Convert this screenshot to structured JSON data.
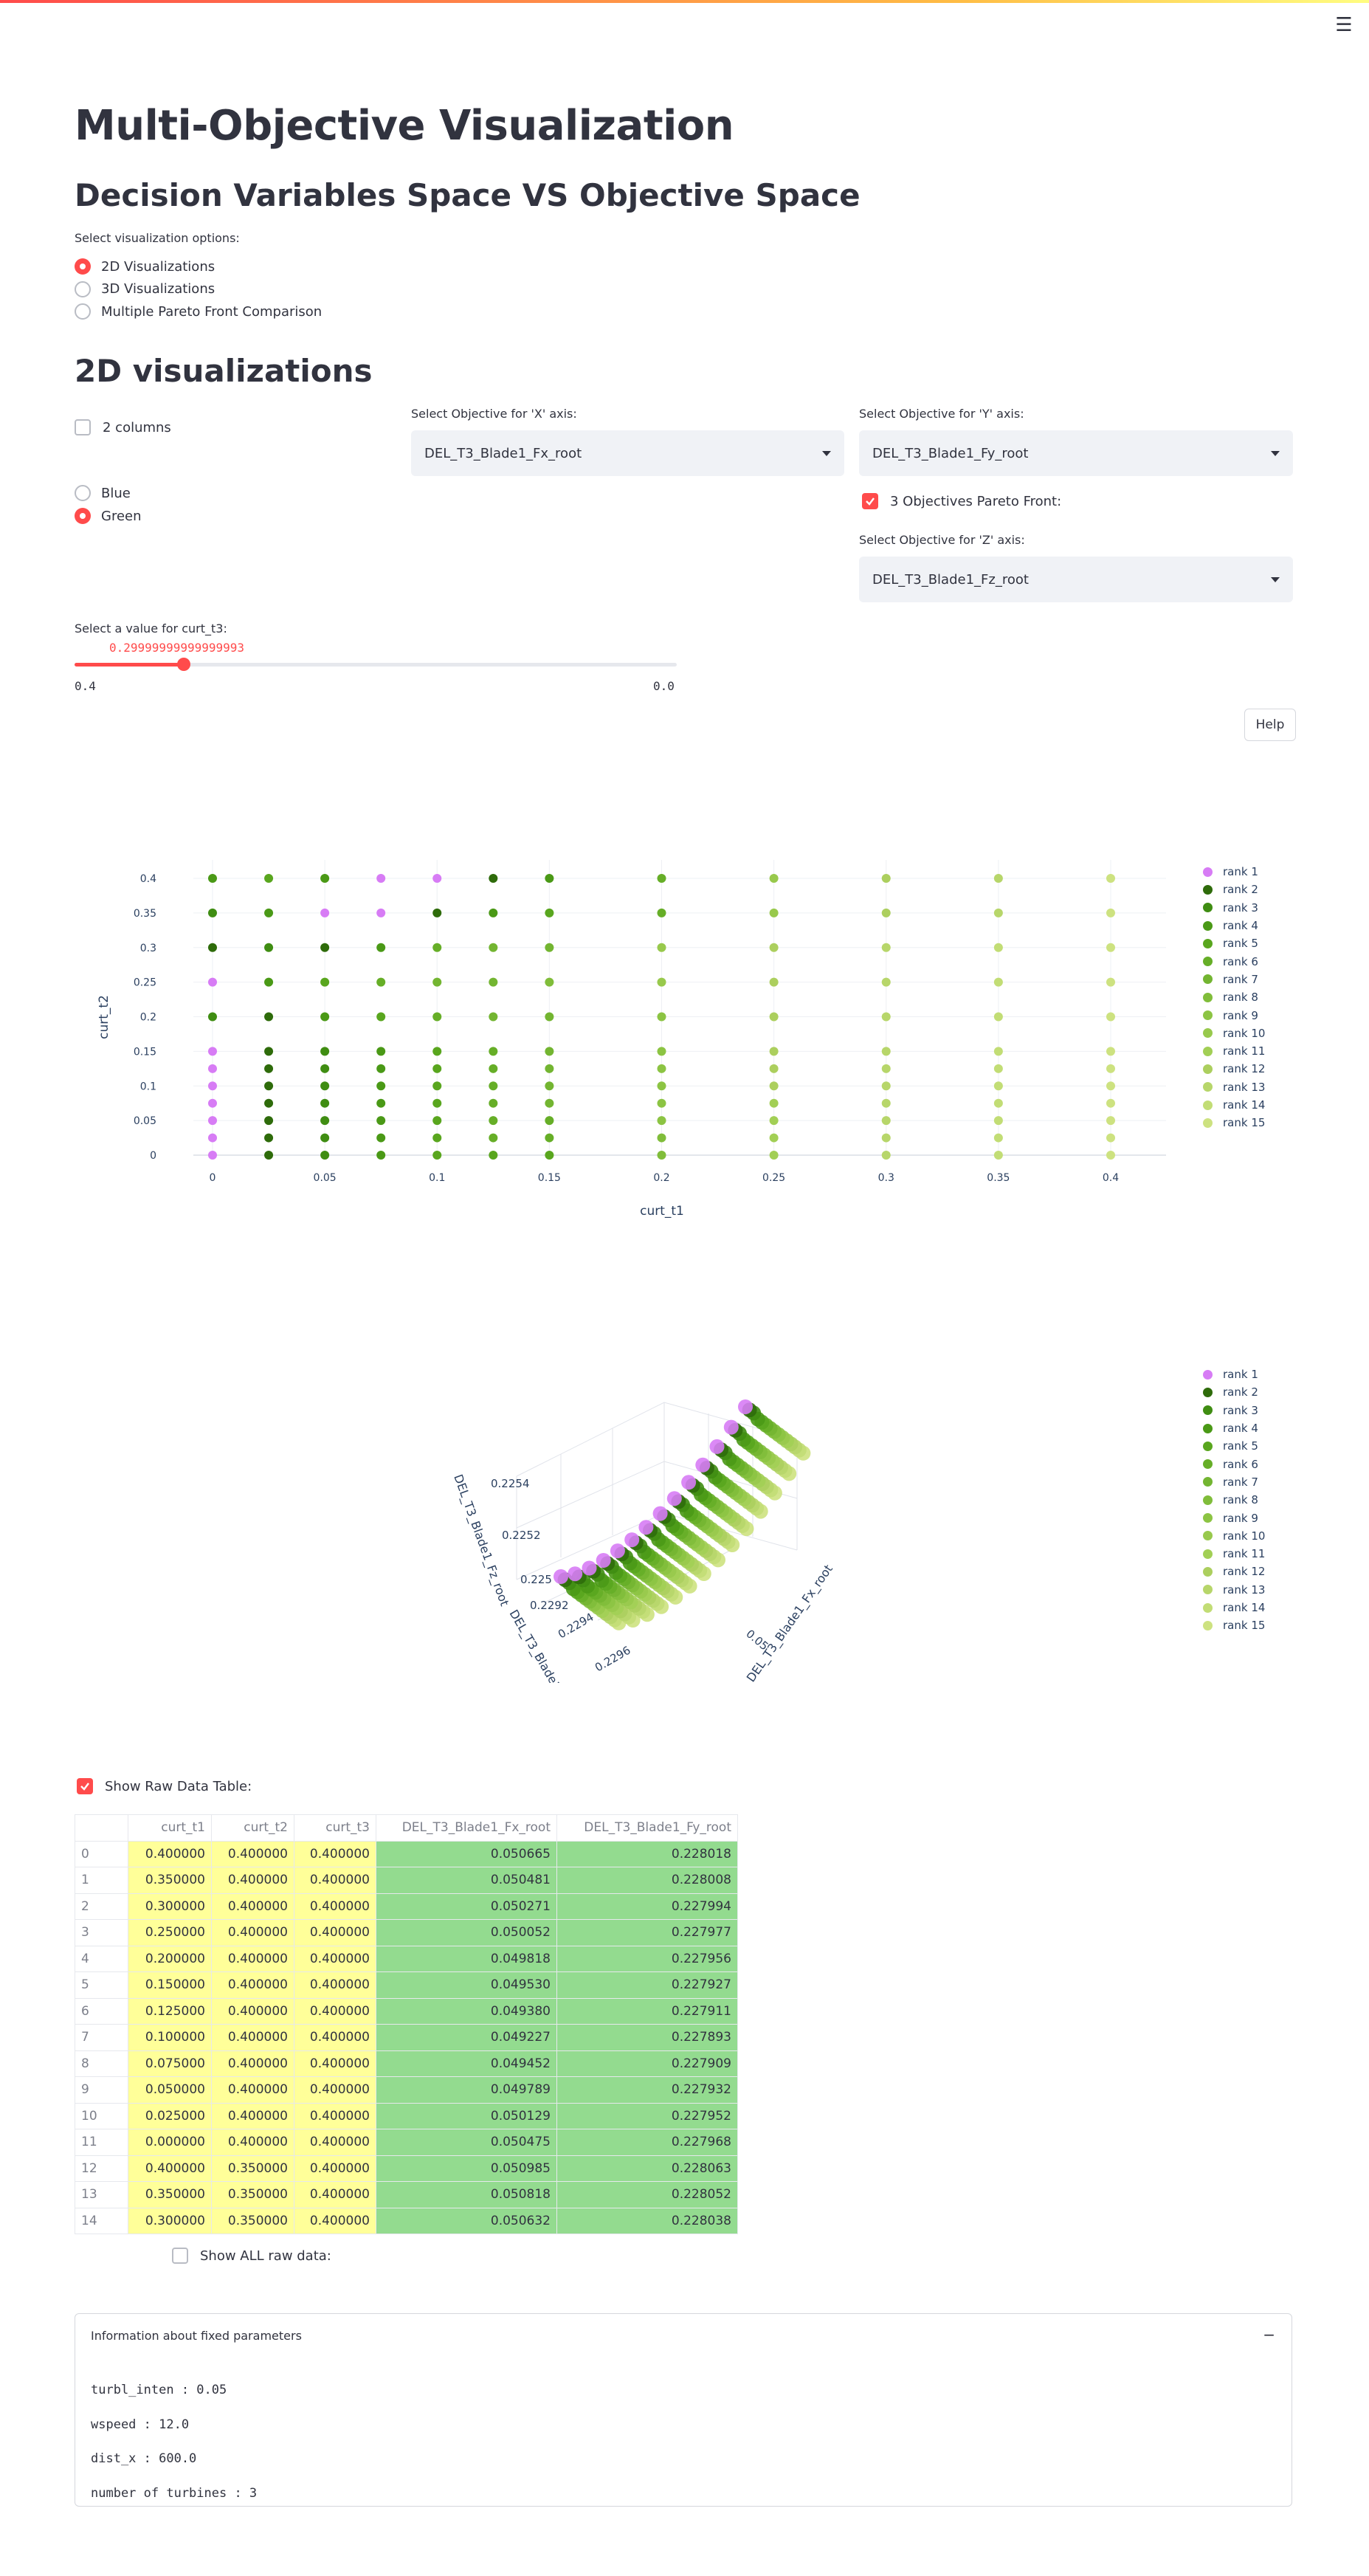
{
  "app": {
    "menu_icon": "hamburger-icon",
    "title": "Multi-Objective Visualization",
    "subtitle": "Decision Variables Space VS Objective Space"
  },
  "viz_options": {
    "label": "Select visualization options:",
    "options": [
      "2D Visualizations",
      "3D Visualizations",
      "Multiple Pareto Front Comparison"
    ],
    "selected": "2D Visualizations"
  },
  "section2d": {
    "heading": "2D visualizations",
    "two_columns_label": "2 columns",
    "two_columns_checked": false,
    "color_options": [
      "Blue",
      "Green"
    ],
    "color_selected": "Green",
    "x_label": "Select Objective for 'X' axis:",
    "x_value": "DEL_T3_Blade1_Fx_root",
    "y_label": "Select Objective for 'Y' axis:",
    "y_value": "DEL_T3_Blade1_Fy_root",
    "pareto3_label": "3 Objectives Pareto Front:",
    "pareto3_checked": true,
    "z_label": "Select Objective for 'Z' axis:",
    "z_value": "DEL_T3_Blade1_Fz_root",
    "slider_label": "Select a value for curt_t3:",
    "slider_value": "0.29999999999999993",
    "slider_min": "0.4",
    "slider_max": "0.0",
    "slider_fraction": 0.275,
    "help_label": "Help"
  },
  "legend": {
    "items": [
      "rank 1",
      "rank 2",
      "rank 3",
      "rank 4",
      "rank 5",
      "rank 6",
      "rank 7",
      "rank 8",
      "rank 9",
      "rank 10",
      "rank 11",
      "rank 12",
      "rank 13",
      "rank 14",
      "rank 15"
    ],
    "colors": [
      "#d77cf5",
      "#2e6b0a",
      "#3f8d12",
      "#4a9916",
      "#59a61e",
      "#66ae27",
      "#73b531",
      "#80bd3a",
      "#8cc443",
      "#98c94c",
      "#a2cf55",
      "#accf5e",
      "#b7d66a",
      "#c2dd75",
      "#cde280"
    ]
  },
  "chart_data": [
    {
      "type": "scatter",
      "title": "",
      "xlabel": "curt_t1",
      "ylabel": "curt_t2",
      "x_ticks": [
        "0",
        "0.05",
        "0.1",
        "0.15",
        "0.2",
        "0.25",
        "0.3",
        "0.35",
        "0.4"
      ],
      "y_ticks": [
        "0",
        "0.05",
        "0.1",
        "0.15",
        "0.2",
        "0.25",
        "0.3",
        "0.35",
        "0.4"
      ],
      "xlim": [
        0,
        0.4
      ],
      "ylim": [
        0,
        0.4
      ],
      "grid": true,
      "legend_position": "right",
      "series_note_rank_colored": true,
      "x": [
        0,
        0.025,
        0.05,
        0.075,
        0.1,
        0.125,
        0.15,
        0.2,
        0.25,
        0.3,
        0.35,
        0.4
      ],
      "y": [
        0,
        0.025,
        0.05,
        0.075,
        0.1,
        0.125,
        0.15,
        0.2,
        0.25,
        0.3,
        0.35,
        0.4
      ],
      "rank_grid": [
        [
          1,
          2,
          3,
          4,
          5,
          5,
          5,
          8,
          11,
          13,
          14,
          15
        ],
        [
          1,
          2,
          3,
          4,
          5,
          6,
          6,
          8,
          11,
          13,
          14,
          15
        ],
        [
          1,
          2,
          3,
          4,
          5,
          6,
          6,
          9,
          11,
          13,
          14,
          15
        ],
        [
          1,
          2,
          3,
          4,
          5,
          6,
          7,
          9,
          11,
          13,
          14,
          15
        ],
        [
          1,
          2,
          3,
          4,
          5,
          6,
          7,
          9,
          12,
          13,
          14,
          15
        ],
        [
          1,
          2,
          3,
          4,
          5,
          6,
          7,
          9,
          12,
          13,
          14,
          15
        ],
        [
          1,
          2,
          3,
          4,
          5,
          6,
          7,
          9,
          12,
          13,
          14,
          15
        ],
        [
          3,
          2,
          4,
          5,
          6,
          7,
          7,
          9,
          12,
          13,
          14,
          15
        ],
        [
          1,
          4,
          5,
          6,
          7,
          7,
          8,
          10,
          12,
          13,
          14,
          15
        ],
        [
          2,
          3,
          2,
          4,
          6,
          7,
          7,
          10,
          12,
          13,
          14,
          15
        ],
        [
          3,
          4,
          1,
          1,
          2,
          4,
          5,
          6,
          10,
          12,
          13,
          15
        ],
        [
          4,
          5,
          4,
          1,
          1,
          2,
          4,
          6,
          10,
          12,
          13,
          15
        ]
      ]
    },
    {
      "type": "scatter",
      "subtype": "3d",
      "title": "",
      "axis_labels": [
        "DEL_T3_Blade1_Fx_root",
        "DEL_T3_Blade1_Fy_root",
        "DEL_T3_Blade1_Fz_root"
      ],
      "visible_ticks": [
        "0.2254",
        "0.2252",
        "0.225",
        "0.2292",
        "0.2294",
        "0.2296",
        "0.05"
      ],
      "legend_position": "right"
    }
  ],
  "table": {
    "show_label": "Show Raw Data Table:",
    "show_checked": true,
    "columns": [
      "",
      "curt_t1",
      "curt_t2",
      "curt_t3",
      "DEL_T3_Blade1_Fx_root",
      "DEL_T3_Blade1_Fy_root"
    ],
    "rows": [
      [
        "0",
        "0.400000",
        "0.400000",
        "0.400000",
        "0.050665",
        "0.228018"
      ],
      [
        "1",
        "0.350000",
        "0.400000",
        "0.400000",
        "0.050481",
        "0.228008"
      ],
      [
        "2",
        "0.300000",
        "0.400000",
        "0.400000",
        "0.050271",
        "0.227994"
      ],
      [
        "3",
        "0.250000",
        "0.400000",
        "0.400000",
        "0.050052",
        "0.227977"
      ],
      [
        "4",
        "0.200000",
        "0.400000",
        "0.400000",
        "0.049818",
        "0.227956"
      ],
      [
        "5",
        "0.150000",
        "0.400000",
        "0.400000",
        "0.049530",
        "0.227927"
      ],
      [
        "6",
        "0.125000",
        "0.400000",
        "0.400000",
        "0.049380",
        "0.227911"
      ],
      [
        "7",
        "0.100000",
        "0.400000",
        "0.400000",
        "0.049227",
        "0.227893"
      ],
      [
        "8",
        "0.075000",
        "0.400000",
        "0.400000",
        "0.049452",
        "0.227909"
      ],
      [
        "9",
        "0.050000",
        "0.400000",
        "0.400000",
        "0.049789",
        "0.227932"
      ],
      [
        "10",
        "0.025000",
        "0.400000",
        "0.400000",
        "0.050129",
        "0.227952"
      ],
      [
        "11",
        "0.000000",
        "0.400000",
        "0.400000",
        "0.050475",
        "0.227968"
      ],
      [
        "12",
        "0.400000",
        "0.350000",
        "0.400000",
        "0.050985",
        "0.228063"
      ],
      [
        "13",
        "0.350000",
        "0.350000",
        "0.400000",
        "0.050818",
        "0.228052"
      ],
      [
        "14",
        "0.300000",
        "0.350000",
        "0.400000",
        "0.050632",
        "0.228038"
      ]
    ],
    "show_all_label": "Show ALL raw data:",
    "show_all_checked": false
  },
  "info": {
    "header": "Information about fixed parameters",
    "collapse_icon": "minus-icon",
    "lines": [
      "turbl_inten : 0.05",
      "wspeed : 12.0",
      "dist_x : 600.0",
      "number of turbines : 3"
    ]
  }
}
